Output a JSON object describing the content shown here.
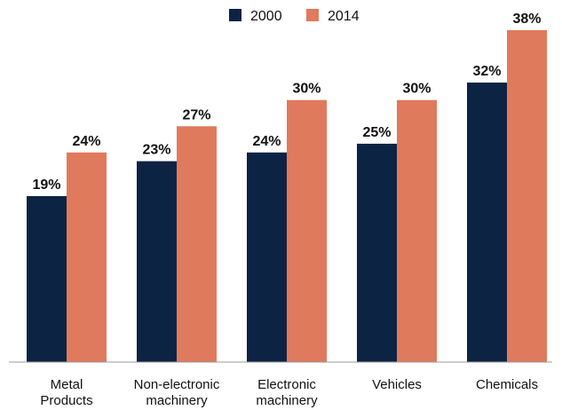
{
  "chart_data": {
    "type": "bar",
    "categories": [
      [
        "Metal",
        "Products"
      ],
      [
        "Non-electronic",
        "machinery"
      ],
      [
        "Electronic",
        "machinery"
      ],
      [
        "Vehicles"
      ],
      [
        "Chemicals"
      ]
    ],
    "series": [
      {
        "name": "2000",
        "color": "#0d2344",
        "values": [
          19,
          23,
          24,
          25,
          32
        ],
        "labels": [
          "19%",
          "23%",
          "24%",
          "25%",
          "32%"
        ]
      },
      {
        "name": "2014",
        "color": "#e07a5c",
        "values": [
          24,
          27,
          30,
          30,
          38
        ],
        "labels": [
          "24%",
          "27%",
          "30%",
          "30%",
          "38%"
        ]
      }
    ],
    "ylim": [
      0,
      38
    ],
    "grid": false,
    "legend": "top-center"
  }
}
